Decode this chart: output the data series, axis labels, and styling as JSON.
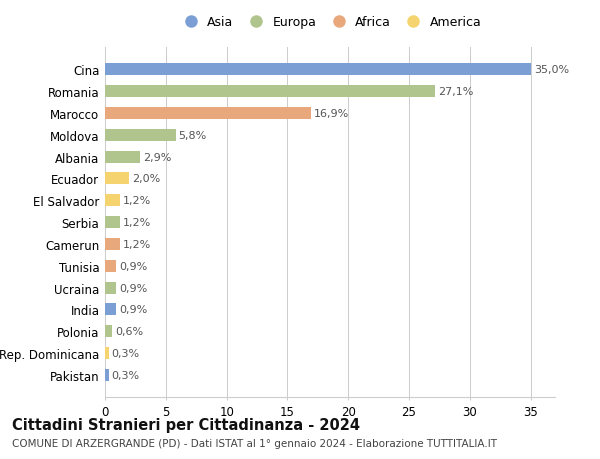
{
  "categories": [
    "Pakistan",
    "Rep. Dominicana",
    "Polonia",
    "India",
    "Ucraina",
    "Tunisia",
    "Camerun",
    "Serbia",
    "El Salvador",
    "Ecuador",
    "Albania",
    "Moldova",
    "Marocco",
    "Romania",
    "Cina"
  ],
  "values": [
    0.3,
    0.3,
    0.6,
    0.9,
    0.9,
    0.9,
    1.2,
    1.2,
    1.2,
    2.0,
    2.9,
    5.8,
    16.9,
    27.1,
    35.0
  ],
  "labels": [
    "0,3%",
    "0,3%",
    "0,6%",
    "0,9%",
    "0,9%",
    "0,9%",
    "1,2%",
    "1,2%",
    "1,2%",
    "2,0%",
    "2,9%",
    "5,8%",
    "16,9%",
    "27,1%",
    "35,0%"
  ],
  "continents": [
    "Asia",
    "America",
    "Europa",
    "Asia",
    "Europa",
    "Africa",
    "Africa",
    "Europa",
    "America",
    "America",
    "Europa",
    "Europa",
    "Africa",
    "Europa",
    "Asia"
  ],
  "colors": {
    "Asia": "#7b9fd4",
    "Europa": "#b0c48e",
    "Africa": "#e8a87c",
    "America": "#f5d470"
  },
  "legend_order": [
    "Asia",
    "Europa",
    "Africa",
    "America"
  ],
  "title": "Cittadini Stranieri per Cittadinanza - 2024",
  "subtitle": "COMUNE DI ARZERGRANDE (PD) - Dati ISTAT al 1° gennaio 2024 - Elaborazione TUTTITALIA.IT",
  "xlim": [
    0,
    37
  ],
  "xticks": [
    0,
    5,
    10,
    15,
    20,
    25,
    30,
    35
  ],
  "background_color": "#ffffff",
  "bar_height": 0.55,
  "grid_color": "#cccccc",
  "title_fontsize": 10.5,
  "subtitle_fontsize": 7.5,
  "tick_fontsize": 8.5,
  "label_fontsize": 8,
  "legend_fontsize": 9
}
